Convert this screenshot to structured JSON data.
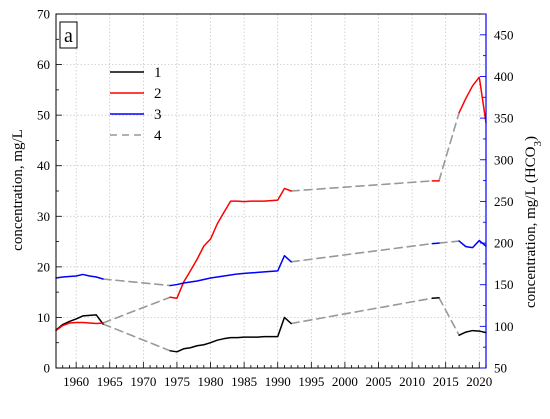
{
  "chart_data": {
    "type": "line",
    "panel_label": "a",
    "ylabel_left": "concentration, mg/L",
    "ylabel_right": "concentration, mg/L (HCO",
    "ylabel_right_sub": "3",
    "ylabel_right_close": ")",
    "xlim": [
      1957,
      2021
    ],
    "ylim_left": [
      0,
      70
    ],
    "ylim_right": [
      50,
      475
    ],
    "x_ticks": [
      1960,
      1965,
      1970,
      1975,
      1980,
      1985,
      1990,
      1995,
      2000,
      2005,
      2010,
      2015,
      2020
    ],
    "y_ticks_left": [
      0,
      10,
      20,
      30,
      40,
      50,
      60,
      70
    ],
    "y_ticks_right": [
      50,
      100,
      150,
      200,
      250,
      300,
      350,
      400,
      450
    ],
    "grid": true,
    "legend_position": "top-left",
    "series": [
      {
        "name": "1",
        "color": "#000000",
        "dash": "solid",
        "axis": "left",
        "segments": [
          [
            [
              1957,
              7.5
            ],
            [
              1958,
              8.6
            ],
            [
              1959,
              9.2
            ],
            [
              1960,
              9.7
            ],
            [
              1961,
              10.3
            ],
            [
              1962,
              10.4
            ],
            [
              1963,
              10.5
            ],
            [
              1964,
              8.7
            ]
          ],
          [
            [
              1974,
              3.4
            ],
            [
              1975,
              3.2
            ],
            [
              1976,
              3.8
            ],
            [
              1977,
              4.0
            ],
            [
              1978,
              4.4
            ],
            [
              1979,
              4.6
            ],
            [
              1980,
              5.0
            ],
            [
              1981,
              5.5
            ],
            [
              1982,
              5.8
            ],
            [
              1983,
              6.0
            ],
            [
              1984,
              6.0
            ],
            [
              1985,
              6.1
            ],
            [
              1986,
              6.1
            ],
            [
              1987,
              6.1
            ],
            [
              1988,
              6.2
            ],
            [
              1989,
              6.2
            ],
            [
              1990,
              6.2
            ],
            [
              1991,
              10.0
            ],
            [
              1992,
              8.8
            ]
          ],
          [
            [
              2013,
              13.8
            ],
            [
              2014,
              13.9
            ]
          ],
          [
            [
              2017,
              6.5
            ],
            [
              2018,
              7.1
            ],
            [
              2019,
              7.4
            ],
            [
              2020,
              7.3
            ],
            [
              2021,
              7.0
            ]
          ]
        ]
      },
      {
        "name": "2",
        "color": "#ff0000",
        "dash": "solid",
        "axis": "left",
        "segments": [
          [
            [
              1957,
              7.4
            ],
            [
              1958,
              8.4
            ],
            [
              1959,
              8.9
            ],
            [
              1960,
              9.0
            ],
            [
              1961,
              9.0
            ],
            [
              1962,
              8.9
            ],
            [
              1963,
              8.8
            ],
            [
              1964,
              8.9
            ]
          ],
          [
            [
              1974,
              14.0
            ],
            [
              1975,
              13.8
            ],
            [
              1976,
              17.0
            ],
            [
              1977,
              19.2
            ],
            [
              1978,
              21.5
            ],
            [
              1979,
              24.1
            ],
            [
              1980,
              25.5
            ],
            [
              1981,
              28.5
            ],
            [
              1982,
              30.8
            ],
            [
              1983,
              33.0
            ],
            [
              1984,
              33.0
            ],
            [
              1985,
              32.9
            ],
            [
              1986,
              33.0
            ],
            [
              1987,
              33.0
            ],
            [
              1988,
              33.0
            ],
            [
              1989,
              33.1
            ],
            [
              1990,
              33.2
            ],
            [
              1991,
              35.5
            ],
            [
              1992,
              35.0
            ]
          ],
          [
            [
              2013,
              37.0
            ],
            [
              2014,
              37.0
            ]
          ],
          [
            [
              2017,
              50.5
            ],
            [
              2018,
              53.3
            ],
            [
              2019,
              55.8
            ],
            [
              2020,
              57.5
            ],
            [
              2021,
              48.5
            ]
          ]
        ]
      },
      {
        "name": "3",
        "color": "#0000ff",
        "dash": "solid",
        "axis": "left",
        "segments": [
          [
            [
              1957,
              17.8
            ],
            [
              1958,
              18.0
            ],
            [
              1959,
              18.1
            ],
            [
              1960,
              18.2
            ],
            [
              1961,
              18.5
            ],
            [
              1962,
              18.2
            ],
            [
              1963,
              18.0
            ],
            [
              1964,
              17.6
            ]
          ],
          [
            [
              1974,
              16.3
            ],
            [
              1975,
              16.5
            ],
            [
              1976,
              16.8
            ],
            [
              1977,
              17.0
            ],
            [
              1978,
              17.2
            ],
            [
              1979,
              17.5
            ],
            [
              1980,
              17.8
            ],
            [
              1981,
              18.0
            ],
            [
              1982,
              18.2
            ],
            [
              1983,
              18.4
            ],
            [
              1984,
              18.6
            ],
            [
              1985,
              18.7
            ],
            [
              1986,
              18.8
            ],
            [
              1987,
              18.9
            ],
            [
              1988,
              19.0
            ],
            [
              1989,
              19.1
            ],
            [
              1990,
              19.2
            ],
            [
              1991,
              22.2
            ],
            [
              1992,
              21.0
            ]
          ],
          [
            [
              2013,
              24.6
            ],
            [
              2014,
              24.7
            ]
          ],
          [
            [
              2017,
              25.1
            ],
            [
              2018,
              24.0
            ],
            [
              2019,
              23.8
            ],
            [
              2020,
              25.2
            ],
            [
              2021,
              24.1
            ]
          ]
        ]
      },
      {
        "name": "4",
        "color": "#999999",
        "dash": "dashed",
        "axis": "left",
        "segments": [
          [
            [
              1964,
              17.6
            ],
            [
              1974,
              16.3
            ]
          ],
          [
            [
              1964,
              8.7
            ],
            [
              1974,
              3.4
            ]
          ],
          [
            [
              1964,
              8.9
            ],
            [
              1974,
              14.0
            ]
          ],
          [
            [
              1992,
              35.0
            ],
            [
              2013,
              37.0
            ]
          ],
          [
            [
              1992,
              21.0
            ],
            [
              2013,
              24.6
            ]
          ],
          [
            [
              1992,
              8.8
            ],
            [
              2013,
              13.8
            ]
          ],
          [
            [
              2014,
              37.0
            ],
            [
              2017,
              50.5
            ]
          ],
          [
            [
              2014,
              24.7
            ],
            [
              2017,
              25.1
            ]
          ],
          [
            [
              2014,
              13.9
            ],
            [
              2017,
              6.5
            ]
          ]
        ]
      }
    ]
  }
}
